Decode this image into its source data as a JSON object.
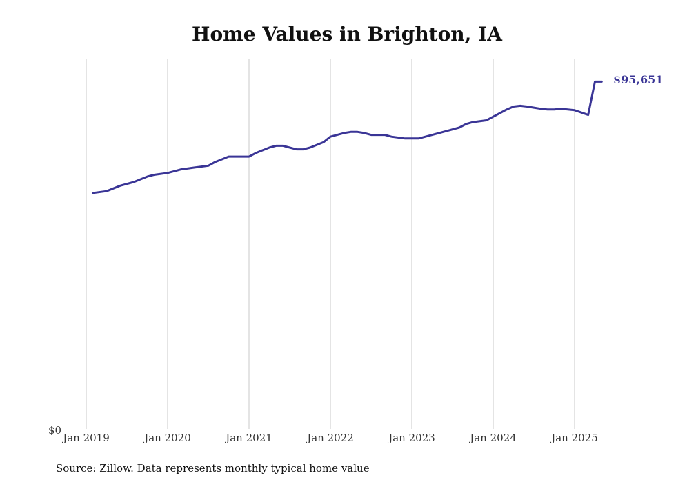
{
  "chart_data": {
    "type": "line",
    "title": "Home Values in Brighton, IA",
    "source": "Source: Zillow. Data represents monthly typical home value",
    "xlabel": "",
    "ylabel": "",
    "x_ticks": [
      "Jan 2019",
      "Jan 2020",
      "Jan 2021",
      "Jan 2022",
      "Jan 2023",
      "Jan 2024",
      "Jan 2025"
    ],
    "y_ticks": [
      "$0"
    ],
    "ylim": [
      0,
      102000
    ],
    "grid": "vertical",
    "line_color": "#3a3596",
    "end_label": "$95,651",
    "series": [
      {
        "x": [
          "2019-02",
          "2019-04",
          "2019-06",
          "2019-08",
          "2019-10",
          "2019-11",
          "2020-01",
          "2020-03",
          "2020-05",
          "2020-07",
          "2020-08",
          "2020-10",
          "2020-11",
          "2021-01",
          "2021-02",
          "2021-04",
          "2021-05",
          "2021-06",
          "2021-07",
          "2021-08",
          "2021-09",
          "2021-10",
          "2021-12",
          "2022-01",
          "2022-02",
          "2022-03",
          "2022-04",
          "2022-05",
          "2022-06",
          "2022-07",
          "2022-08",
          "2022-09",
          "2022-10",
          "2022-12",
          "2023-02",
          "2023-04",
          "2023-06",
          "2023-08",
          "2023-09",
          "2023-10",
          "2023-12",
          "2024-01",
          "2024-02",
          "2024-03",
          "2024-04",
          "2024-05",
          "2024-06",
          "2024-07",
          "2024-08",
          "2024-09",
          "2024-10",
          "2024-11",
          "2025-01",
          "2025-03",
          "2025-04",
          "2025-05"
        ],
        "values": [
          65000,
          65500,
          67000,
          68000,
          69500,
          70000,
          70500,
          71500,
          72000,
          72500,
          73500,
          75000,
          75000,
          75000,
          76000,
          77500,
          78000,
          78000,
          77500,
          77000,
          77000,
          77500,
          79000,
          80500,
          81000,
          81500,
          81800,
          81800,
          81500,
          81000,
          81000,
          81000,
          80500,
          80000,
          80000,
          81000,
          82000,
          83000,
          84000,
          84500,
          85000,
          86000,
          87000,
          88000,
          88800,
          89000,
          88800,
          88500,
          88200,
          88000,
          88000,
          88200,
          87800,
          86500,
          95651,
          95651
        ]
      }
    ]
  }
}
